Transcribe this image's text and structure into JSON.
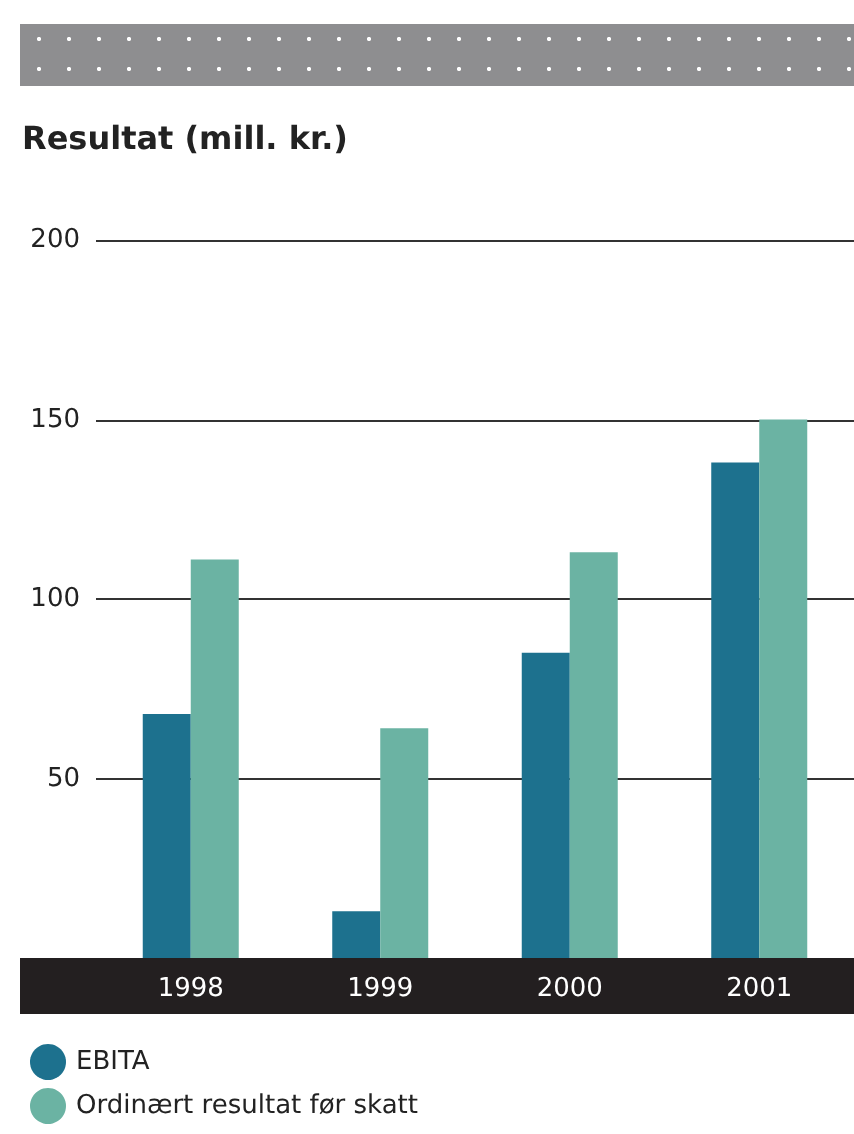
{
  "chart_data": {
    "type": "bar",
    "title": "Resultat (mill. kr.)",
    "categories": [
      "1998",
      "1999",
      "2000",
      "2001"
    ],
    "series": [
      {
        "name": "EBITA",
        "color": "#1d718e",
        "values": [
          68,
          13,
          85,
          138
        ]
      },
      {
        "name": "Ordinært resultat før skatt",
        "color": "#6bb3a3",
        "values": [
          111,
          64,
          113,
          150
        ]
      }
    ],
    "ylim": [
      0,
      200
    ],
    "yticks": [
      50,
      100,
      150,
      200
    ],
    "grid": "y",
    "legend": "bottom left"
  }
}
